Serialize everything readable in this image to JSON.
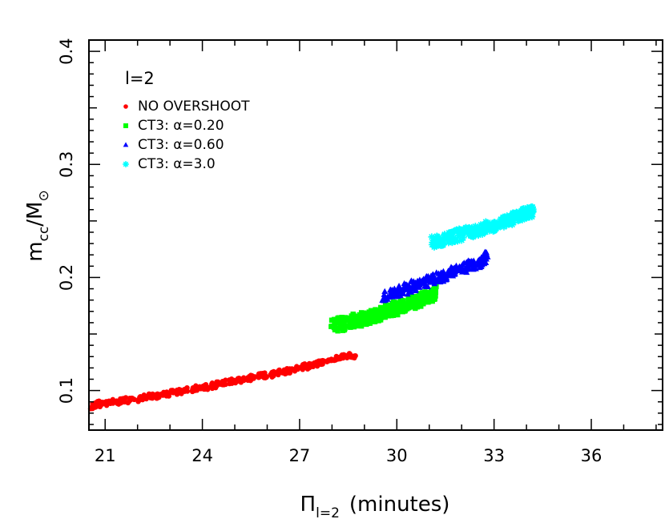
{
  "chart_data": {
    "type": "scatter",
    "xlabel": "Π",
    "xlabel_subscript": "l=2",
    "xlabel_suffix": "(minutes)",
    "ylabel": "m",
    "ylabel_subscript": "cc",
    "ylabel_suffix": "/M",
    "ylabel_suffix_subscript": "⊙",
    "xlim": [
      20.5,
      38.2
    ],
    "ylim": [
      0.065,
      0.41
    ],
    "x_ticks": [
      21,
      24,
      27,
      30,
      33,
      36
    ],
    "y_ticks": [
      0.1,
      0.2,
      0.3,
      0.4
    ],
    "x_tick_labels": [
      "21",
      "24",
      "27",
      "30",
      "33",
      "36"
    ],
    "y_tick_labels": [
      "0.1",
      "0.2",
      "0.3",
      "0.4"
    ],
    "legend_title": "l=2",
    "legend_position": "top-left",
    "series": [
      {
        "name": "NO OVERSHOOT",
        "color": "#ff0000",
        "marker": "circle",
        "points": [
          [
            20.6,
            0.086
          ],
          [
            20.8,
            0.088
          ],
          [
            21.0,
            0.089
          ],
          [
            21.3,
            0.09
          ],
          [
            21.6,
            0.091
          ],
          [
            21.9,
            0.092
          ],
          [
            22.2,
            0.094
          ],
          [
            22.5,
            0.095
          ],
          [
            22.8,
            0.097
          ],
          [
            23.1,
            0.098
          ],
          [
            23.4,
            0.1
          ],
          [
            23.7,
            0.101
          ],
          [
            24.0,
            0.103
          ],
          [
            24.3,
            0.104
          ],
          [
            24.6,
            0.106
          ],
          [
            24.9,
            0.108
          ],
          [
            25.2,
            0.109
          ],
          [
            25.5,
            0.111
          ],
          [
            25.8,
            0.113
          ],
          [
            26.1,
            0.114
          ],
          [
            26.4,
            0.116
          ],
          [
            26.7,
            0.118
          ],
          [
            27.0,
            0.12
          ],
          [
            27.3,
            0.122
          ],
          [
            27.6,
            0.124
          ],
          [
            27.9,
            0.127
          ],
          [
            28.2,
            0.129
          ],
          [
            28.5,
            0.131
          ],
          [
            28.7,
            0.13
          ]
        ]
      },
      {
        "name": "CT3: α=0.20",
        "color": "#00ff00",
        "marker": "square",
        "points": [
          [
            28.0,
            0.157
          ],
          [
            28.3,
            0.159
          ],
          [
            28.6,
            0.161
          ],
          [
            28.9,
            0.163
          ],
          [
            29.2,
            0.165
          ],
          [
            29.5,
            0.168
          ],
          [
            29.8,
            0.171
          ],
          [
            30.1,
            0.174
          ],
          [
            30.4,
            0.177
          ],
          [
            30.7,
            0.18
          ],
          [
            31.0,
            0.183
          ],
          [
            31.2,
            0.187
          ]
        ]
      },
      {
        "name": "CT3: α=0.60",
        "color": "#0000ff",
        "marker": "triangle",
        "points": [
          [
            29.6,
            0.182
          ],
          [
            29.9,
            0.186
          ],
          [
            30.2,
            0.189
          ],
          [
            30.5,
            0.192
          ],
          [
            30.8,
            0.195
          ],
          [
            31.1,
            0.198
          ],
          [
            31.4,
            0.201
          ],
          [
            31.7,
            0.204
          ],
          [
            32.0,
            0.208
          ],
          [
            32.3,
            0.211
          ],
          [
            32.6,
            0.214
          ],
          [
            32.8,
            0.218
          ]
        ]
      },
      {
        "name": "CT3: α=3.0",
        "color": "#00ffff",
        "marker": "star",
        "points": [
          [
            31.1,
            0.231
          ],
          [
            31.4,
            0.233
          ],
          [
            31.7,
            0.236
          ],
          [
            32.0,
            0.238
          ],
          [
            32.3,
            0.24
          ],
          [
            32.6,
            0.243
          ],
          [
            32.9,
            0.245
          ],
          [
            33.2,
            0.248
          ],
          [
            33.5,
            0.251
          ],
          [
            33.8,
            0.254
          ],
          [
            34.0,
            0.257
          ],
          [
            34.2,
            0.259
          ]
        ]
      }
    ]
  }
}
